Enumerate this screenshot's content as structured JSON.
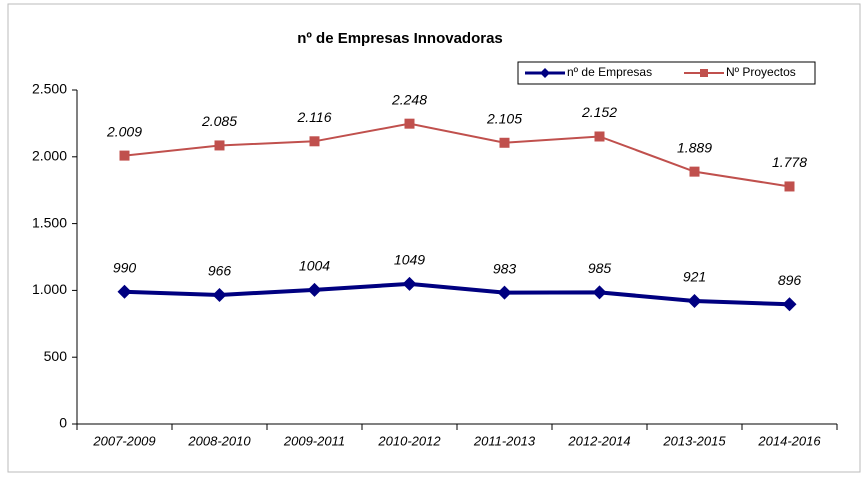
{
  "chart_data": {
    "type": "line",
    "title": "nº de Empresas Innovadoras",
    "categories": [
      "2007-2009",
      "2008-2010",
      "2009-2011",
      "2010-2012",
      "2011-2013",
      "2012-2014",
      "2013-2015",
      "2014-2016"
    ],
    "series": [
      {
        "name": "nº de Empresas",
        "color": "#000080",
        "marker": "diamond",
        "values": [
          990,
          966,
          1004,
          1049,
          983,
          985,
          921,
          896
        ]
      },
      {
        "name": "Nº Proyectos",
        "color": "#c0504d",
        "marker": "square",
        "values": [
          2009,
          2085,
          2116,
          2248,
          2105,
          2152,
          1889,
          1778
        ],
        "value_labels": [
          "2.009",
          "2.085",
          "2.116",
          "2.248",
          "2.105",
          "2.152",
          "1.889",
          "1.778"
        ]
      }
    ],
    "ylim": [
      0,
      2500
    ],
    "yticks": [
      0,
      500,
      {
        "value": 1000,
        "label": "1.000"
      },
      {
        "value": 1500,
        "label": "1.500"
      },
      {
        "value": 2000,
        "label": "2.000"
      },
      {
        "value": 2500,
        "label": "2.500"
      }
    ],
    "legend": "top-right"
  }
}
